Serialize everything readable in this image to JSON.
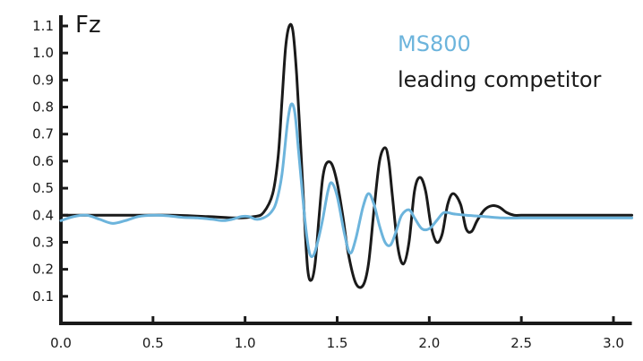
{
  "chart_data": {
    "type": "line",
    "title": "",
    "xlabel": "",
    "ylabel": "Fz",
    "xlim": [
      0.0,
      3.1
    ],
    "ylim": [
      0.0,
      1.12
    ],
    "x_ticks": [
      0.0,
      0.5,
      1.0,
      1.5,
      2.0,
      2.5,
      3.0
    ],
    "x_tick_labels": [
      "0.0",
      "0.5",
      "1.0",
      "1.5",
      "2.0",
      "2.5",
      "3.0"
    ],
    "y_ticks": [
      0.1,
      0.2,
      0.3,
      0.4,
      0.5,
      0.6,
      0.7,
      0.8,
      0.9,
      1.0,
      1.1
    ],
    "y_tick_labels": [
      "0.1",
      "0.2",
      "0.3",
      "0.4",
      "0.5",
      "0.6",
      "0.7",
      "0.8",
      "0.9",
      "1.0",
      "1.1"
    ],
    "grid": false,
    "legend_position": "top-right",
    "series": [
      {
        "name": "MS800",
        "color": "#6cb4dc",
        "x": [
          0.0,
          0.07,
          0.14,
          0.21,
          0.28,
          0.35,
          0.42,
          0.5,
          0.58,
          0.66,
          0.74,
          0.82,
          0.88,
          0.93,
          0.98,
          1.02,
          1.06,
          1.1,
          1.14,
          1.17,
          1.2,
          1.23,
          1.25,
          1.27,
          1.29,
          1.31,
          1.33,
          1.35,
          1.37,
          1.39,
          1.42,
          1.45,
          1.47,
          1.5,
          1.54,
          1.57,
          1.6,
          1.64,
          1.67,
          1.7,
          1.73,
          1.76,
          1.79,
          1.82,
          1.85,
          1.89,
          1.92,
          1.96,
          2.0,
          2.04,
          2.08,
          2.13,
          2.2,
          2.3,
          2.4,
          2.5,
          2.6,
          2.7,
          2.8,
          2.9,
          3.0,
          3.1
        ],
        "values": [
          0.38,
          0.395,
          0.4,
          0.385,
          0.37,
          0.38,
          0.395,
          0.4,
          0.398,
          0.392,
          0.39,
          0.385,
          0.38,
          0.385,
          0.395,
          0.395,
          0.385,
          0.39,
          0.41,
          0.45,
          0.55,
          0.74,
          0.81,
          0.78,
          0.64,
          0.49,
          0.35,
          0.26,
          0.25,
          0.29,
          0.38,
          0.49,
          0.52,
          0.47,
          0.33,
          0.26,
          0.31,
          0.43,
          0.48,
          0.44,
          0.36,
          0.3,
          0.29,
          0.34,
          0.4,
          0.42,
          0.39,
          0.35,
          0.35,
          0.38,
          0.41,
          0.405,
          0.4,
          0.395,
          0.39,
          0.39,
          0.39,
          0.39,
          0.39,
          0.39,
          0.39,
          0.39
        ]
      },
      {
        "name": "leading competitor",
        "color": "#1a1a1a",
        "x": [
          0.0,
          0.2,
          0.4,
          0.6,
          0.8,
          0.95,
          1.05,
          1.1,
          1.15,
          1.18,
          1.2,
          1.22,
          1.24,
          1.26,
          1.28,
          1.3,
          1.32,
          1.34,
          1.36,
          1.38,
          1.4,
          1.42,
          1.44,
          1.47,
          1.5,
          1.53,
          1.56,
          1.6,
          1.64,
          1.67,
          1.7,
          1.73,
          1.76,
          1.78,
          1.8,
          1.83,
          1.86,
          1.89,
          1.92,
          1.95,
          1.98,
          2.01,
          2.04,
          2.07,
          2.1,
          2.13,
          2.17,
          2.2,
          2.23,
          2.26,
          2.3,
          2.34,
          2.38,
          2.42,
          2.46,
          2.5,
          2.55,
          2.6,
          2.7,
          2.8,
          2.9,
          3.0,
          3.1
        ],
        "values": [
          0.4,
          0.4,
          0.4,
          0.4,
          0.395,
          0.39,
          0.395,
          0.41,
          0.48,
          0.62,
          0.82,
          1.02,
          1.1,
          1.08,
          0.92,
          0.68,
          0.42,
          0.2,
          0.16,
          0.22,
          0.38,
          0.53,
          0.59,
          0.59,
          0.52,
          0.4,
          0.26,
          0.15,
          0.14,
          0.22,
          0.42,
          0.6,
          0.65,
          0.6,
          0.47,
          0.28,
          0.22,
          0.3,
          0.49,
          0.54,
          0.49,
          0.36,
          0.3,
          0.33,
          0.44,
          0.48,
          0.44,
          0.35,
          0.34,
          0.38,
          0.42,
          0.435,
          0.43,
          0.41,
          0.4,
          0.4,
          0.4,
          0.4,
          0.4,
          0.4,
          0.4,
          0.4,
          0.4
        ]
      }
    ]
  }
}
